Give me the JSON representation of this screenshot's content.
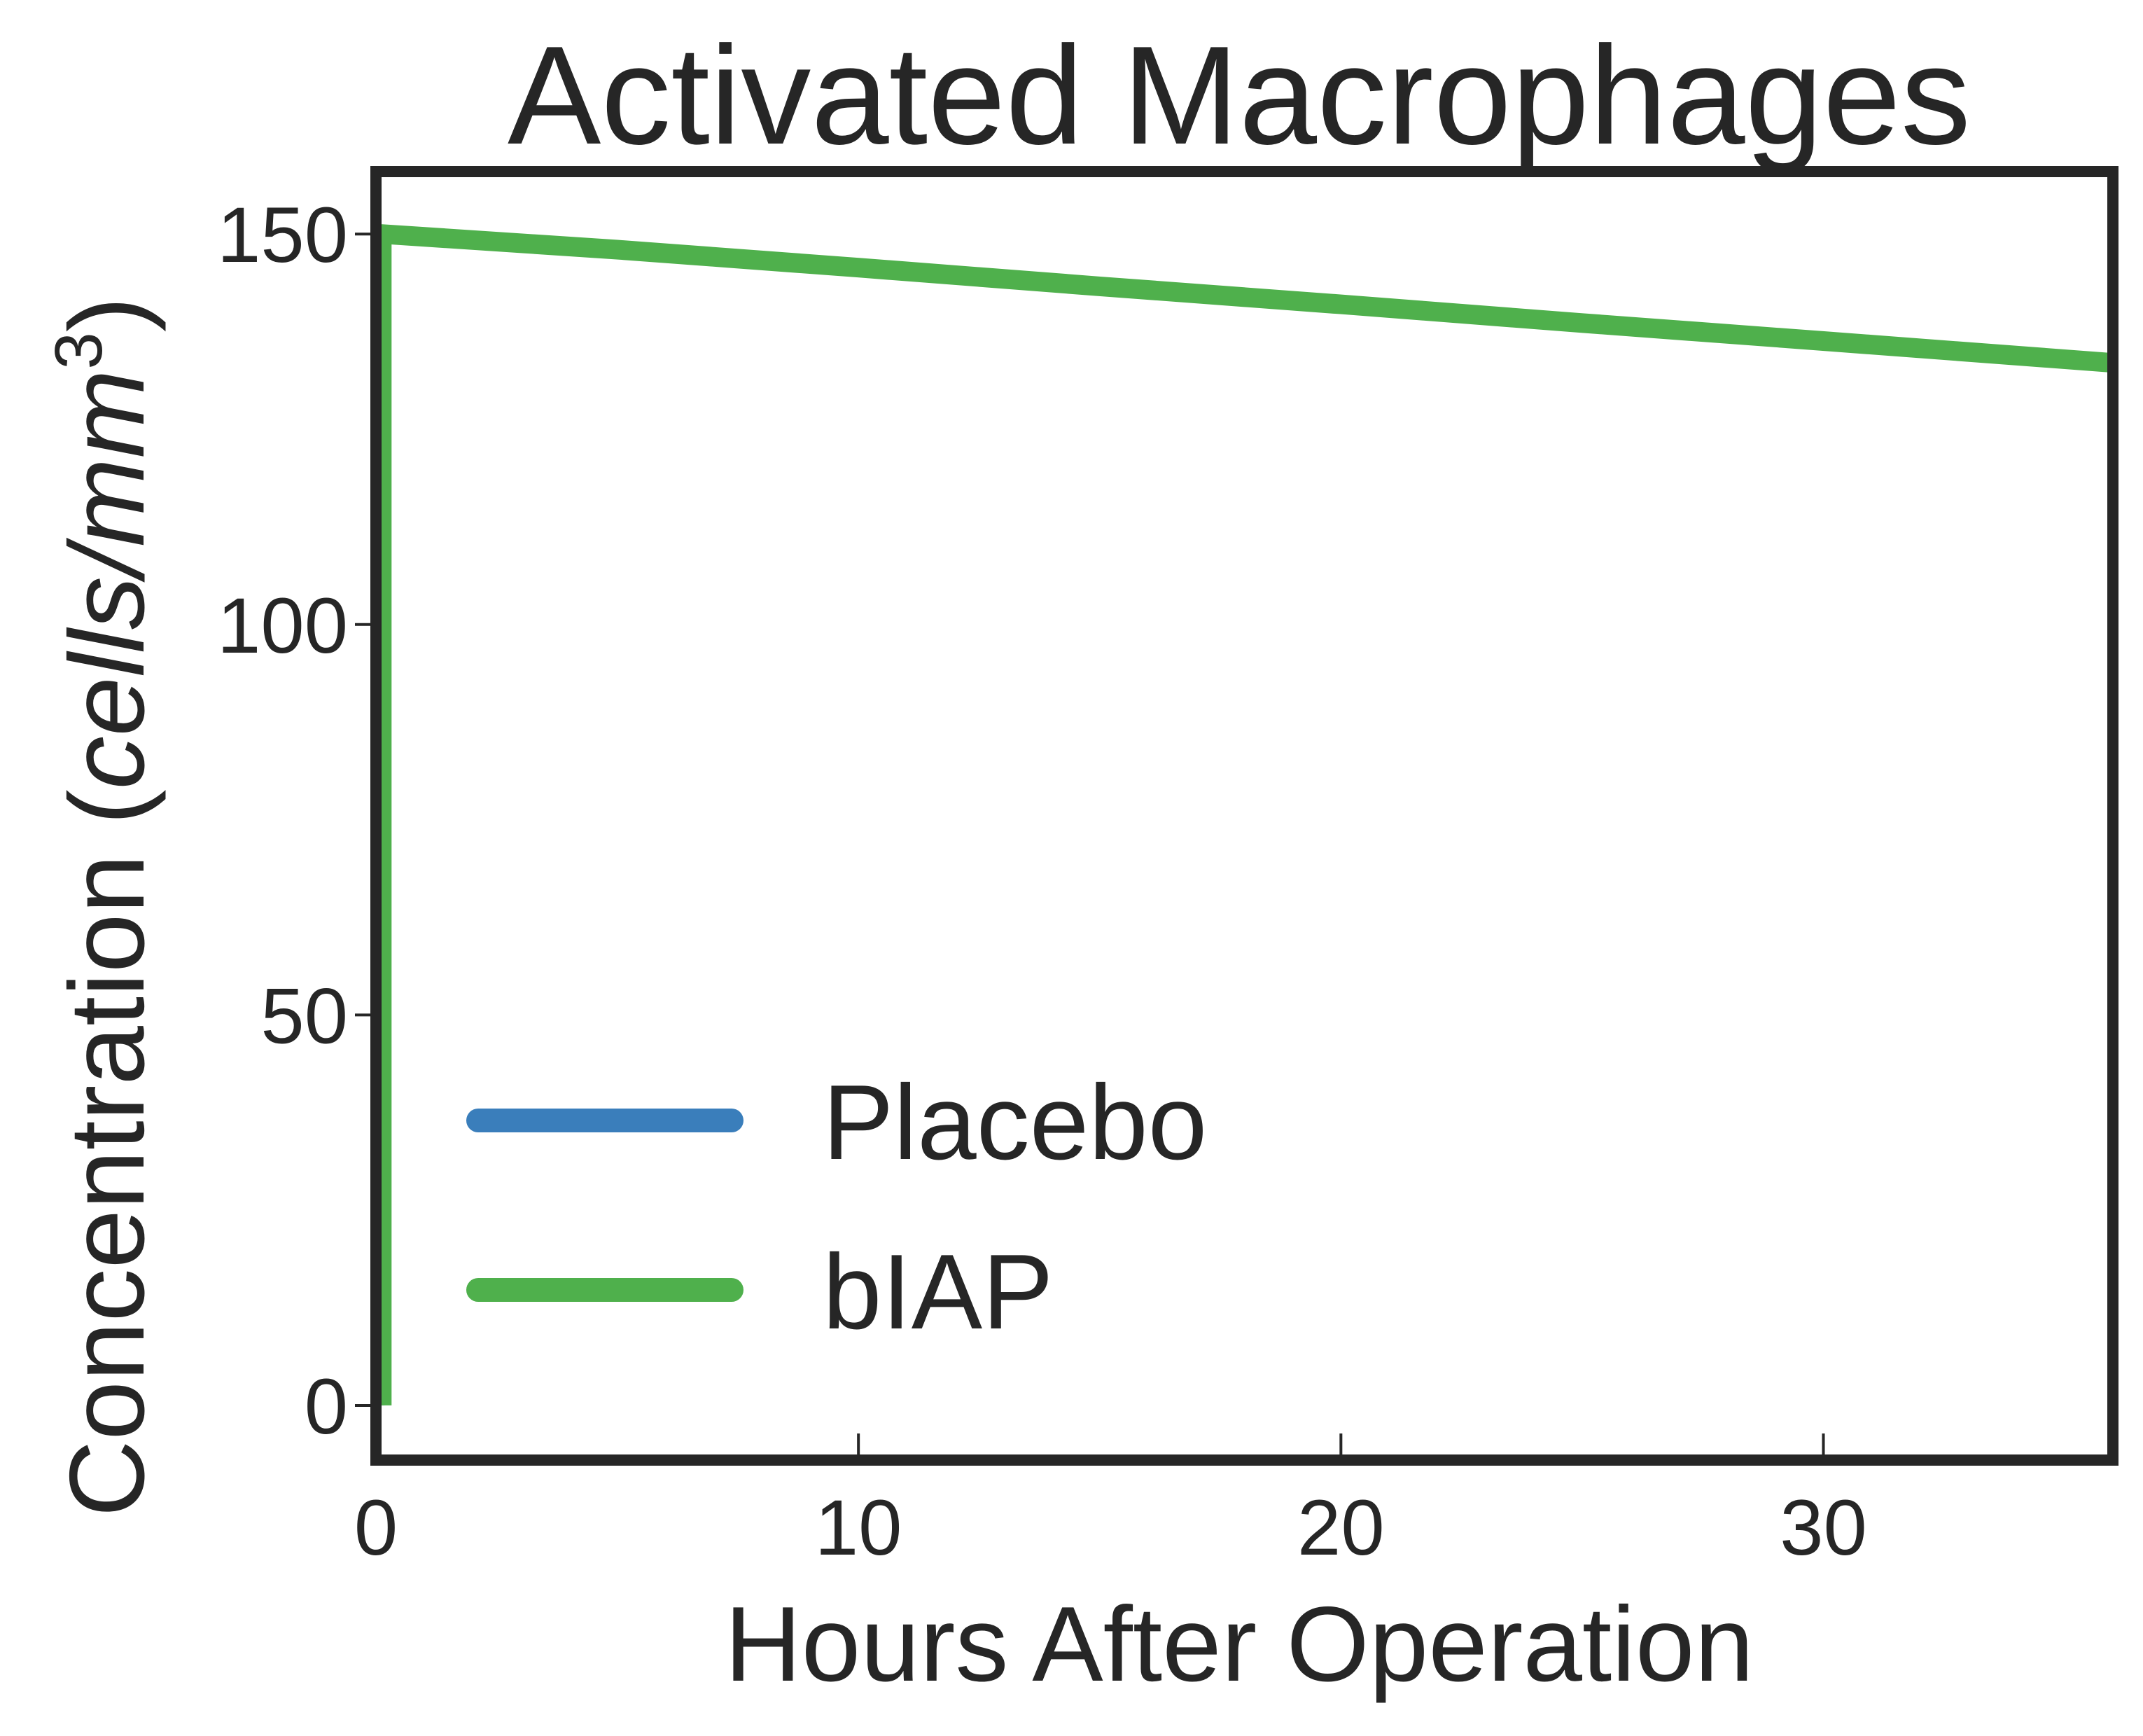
{
  "chart_data": {
    "type": "line",
    "title": "Activated Macrophages",
    "xlabel": "Hours After Operation",
    "ylabel_main": "Concentration (",
    "ylabel_italic": "cells/mm",
    "ylabel_sup": "3",
    "ylabel_close": ")",
    "xlim": [
      0,
      36
    ],
    "ylim": [
      -7,
      158
    ],
    "xticks": [
      0,
      10,
      20,
      30
    ],
    "yticks": [
      0,
      50,
      100,
      150
    ],
    "grid": false,
    "legend_position": "lower-left",
    "series": [
      {
        "name": "Placebo",
        "color": "#3a7ebb",
        "x": [
          0.12,
          0.12
        ],
        "y": [
          0,
          150
        ]
      },
      {
        "name": "bIAP",
        "color": "#4fb04c",
        "x": [
          0.12,
          0.12,
          5,
          10,
          15,
          20,
          25,
          30,
          36
        ],
        "y": [
          0,
          150,
          148,
          145.7,
          143.3,
          141,
          138.6,
          136.3,
          133.5
        ]
      }
    ]
  }
}
